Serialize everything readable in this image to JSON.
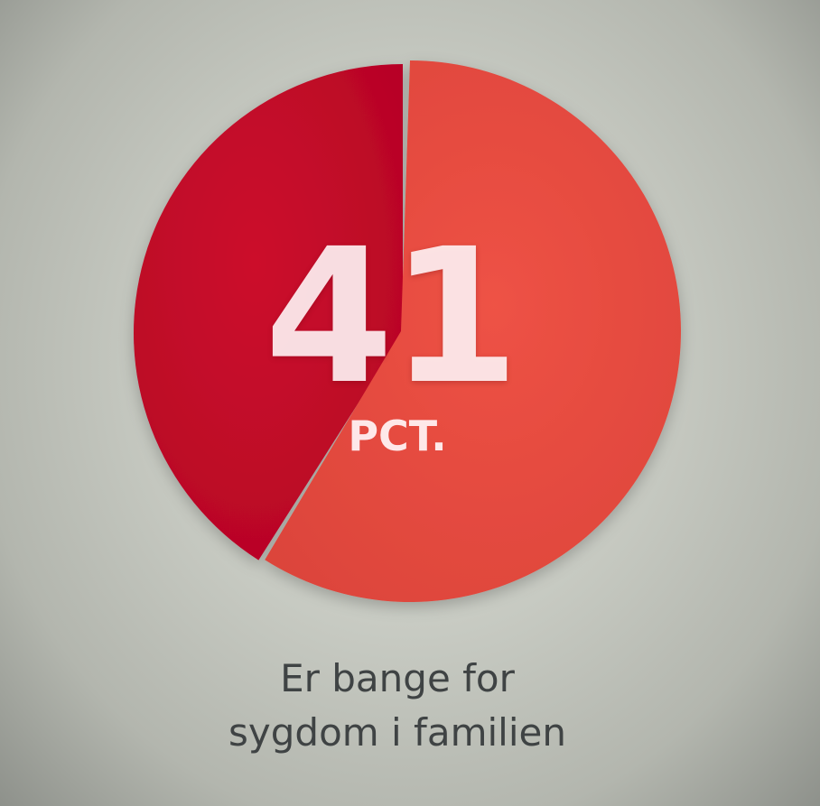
{
  "chart_data": {
    "type": "pie",
    "slices": [
      {
        "value": 41,
        "color": "#c20a28"
      },
      {
        "value": 59,
        "color": "#e6493e"
      }
    ],
    "highlight_value": "41",
    "unit_label": "PCT.",
    "caption_lines": [
      "Er bange for",
      "sygdom i familien"
    ]
  },
  "colors": {
    "background": "#c9ccc4",
    "primary_slice": "#c20a28",
    "secondary_slice": "#e6493e",
    "text_overlay": "#fdf1f2",
    "caption_text": "#3f4344"
  }
}
